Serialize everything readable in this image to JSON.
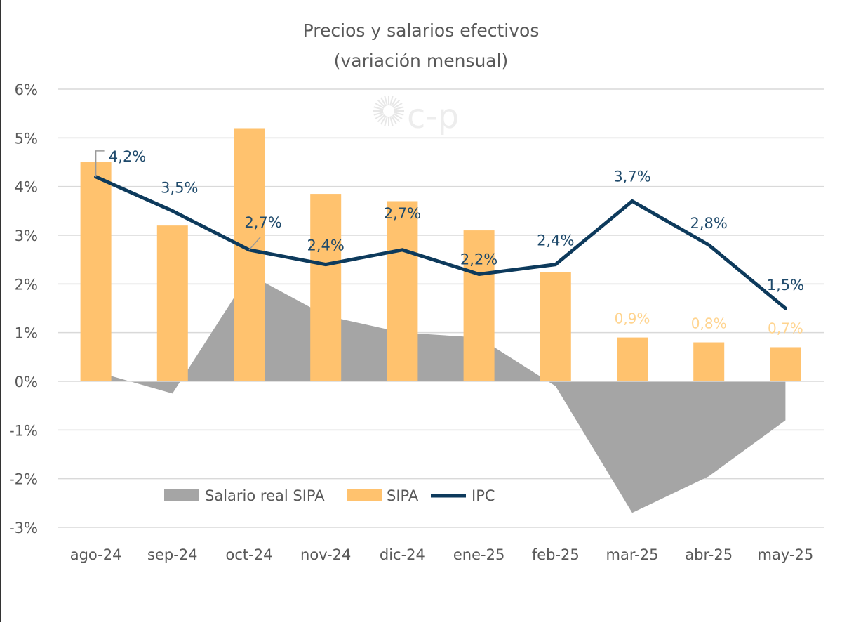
{
  "chart_data": {
    "type": "bar+line+area",
    "title": "Precios y salarios efectivos",
    "subtitle": "(variación mensual)",
    "watermark": "c-p",
    "categories": [
      "ago-24",
      "sep-24",
      "oct-24",
      "nov-24",
      "dic-24",
      "ene-25",
      "feb-25",
      "mar-25",
      "abr-25",
      "may-25"
    ],
    "ylim": [
      -3,
      6
    ],
    "yticks": [
      "-3%",
      "-2%",
      "-1%",
      "0%",
      "1%",
      "2%",
      "3%",
      "4%",
      "5%",
      "6%"
    ],
    "grid": true,
    "legend_placement": "bottom-left",
    "series": [
      {
        "name": "Salario real SIPA",
        "kind": "area",
        "color": "#a5a5a5",
        "values": [
          0.2,
          -0.25,
          2.2,
          1.35,
          1.0,
          0.9,
          -0.1,
          -2.7,
          -1.95,
          -0.8
        ]
      },
      {
        "name": "SIPA",
        "kind": "bar",
        "color": "#ffc26e",
        "values": [
          4.5,
          3.2,
          5.2,
          3.85,
          3.7,
          3.1,
          2.25,
          0.9,
          0.8,
          0.7
        ],
        "labels": [
          null,
          null,
          null,
          null,
          null,
          null,
          null,
          "0,9%",
          "0,8%",
          "0,7%"
        ]
      },
      {
        "name": "IPC",
        "kind": "line",
        "color": "#0d3a5c",
        "values": [
          4.2,
          3.5,
          2.7,
          2.4,
          2.7,
          2.2,
          2.4,
          3.7,
          2.8,
          1.5
        ],
        "labels": [
          "4,2%",
          "3,5%",
          "2,7%",
          "2,4%",
          "2,7%",
          "2,2%",
          "2,4%",
          "3,7%",
          "2,8%",
          "1,5%"
        ]
      }
    ]
  }
}
